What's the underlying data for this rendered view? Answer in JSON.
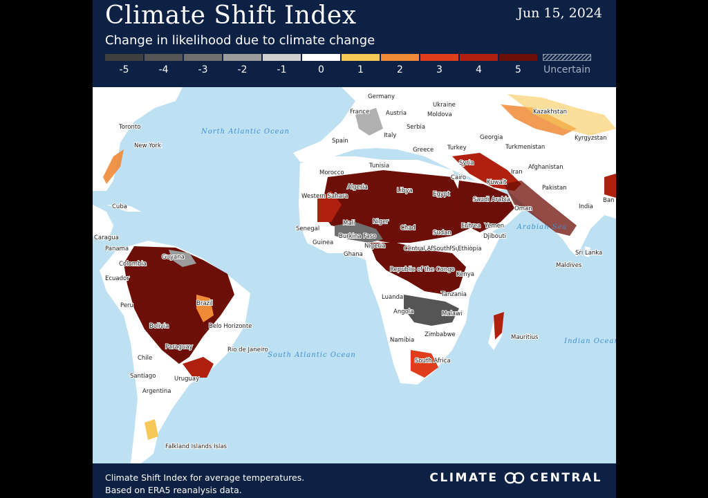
{
  "header": {
    "title": "Climate Shift Index",
    "date": "Jun 15, 2024",
    "subtitle": "Change in likelihood due to climate change"
  },
  "legend": {
    "items": [
      {
        "label": "-5",
        "color": "#3f3f3f"
      },
      {
        "label": "-4",
        "color": "#555555"
      },
      {
        "label": "-3",
        "color": "#6f6f6f"
      },
      {
        "label": "-2",
        "color": "#9c9c9c"
      },
      {
        "label": "-1",
        "color": "#cfcfcf"
      },
      {
        "label": "0",
        "color": "#ffffff"
      },
      {
        "label": "1",
        "color": "#f6c857"
      },
      {
        "label": "2",
        "color": "#ef8a36"
      },
      {
        "label": "3",
        "color": "#df3d1c"
      },
      {
        "label": "4",
        "color": "#b0200f"
      },
      {
        "label": "5",
        "color": "#6e0f07"
      }
    ],
    "uncertain_label": "Uncertain"
  },
  "map": {
    "ocean_color": "#bde0f3",
    "land_color": "#ffffff",
    "oceans": [
      "North Atlantic Ocean",
      "South Atlantic Ocean",
      "Indian Ocean",
      "Arabian Sea"
    ],
    "places": [
      "Toronto",
      "New York",
      "Cuba",
      "Caragua",
      "Panama",
      "Colombia",
      "Ecuador",
      "Guyana",
      "Peru",
      "Brazil",
      "Bolivia",
      "Belo Horizonte",
      "Paraguay",
      "Rio de Janeiro",
      "Chile",
      "Santiago",
      "Uruguay",
      "Argentina",
      "Falkland Islands Islas",
      "Germany",
      "France",
      "Austria",
      "Ukraine",
      "Moldova",
      "Serbia",
      "Italy",
      "Spain",
      "Greece",
      "Turkey",
      "Georgia",
      "Kazakhstan",
      "Kyrgyzstan",
      "Turkmenistan",
      "Tunisia",
      "Morocco",
      "Algeria",
      "Libya",
      "Cairo",
      "Egypt",
      "Syria",
      "Kuwait",
      "Iran",
      "Afghanistan",
      "Pakistan",
      "India",
      "Ban",
      "Western Sahara",
      "Saudi Arabia",
      "Oman",
      "Senegal",
      "Mali",
      "Niger",
      "Burkina Faso",
      "Guinea",
      "Chad",
      "Eritrea",
      "Yemen",
      "Sudan",
      "Djibouti",
      "Nigeria",
      "Ghana",
      "Central African Republic",
      "South Sudan",
      "Ethiopia",
      "Sri Lanka",
      "Maldives",
      "Kenya",
      "Republic of the Congo",
      "Tanzania",
      "Luanda",
      "Angola",
      "Malawi",
      "Zimbabwe",
      "Namibia",
      "Mauritius",
      "South Africa"
    ]
  },
  "footer": {
    "line1": "Climate Shift Index for average temperatures.",
    "line2": "Based on ERA5 reanalysis data.",
    "brand_left": "CLIMATE",
    "brand_right": "CENTRAL"
  }
}
